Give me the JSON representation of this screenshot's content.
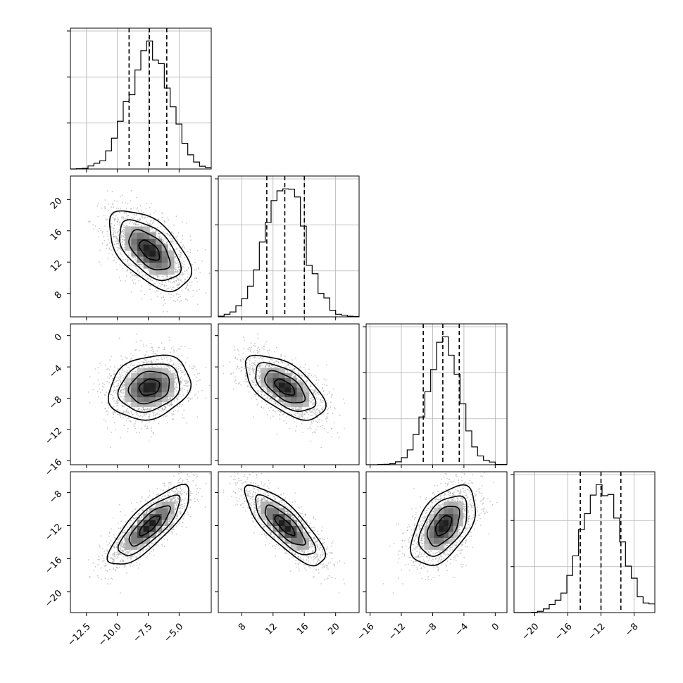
{
  "chart_data": {
    "type": "corner",
    "title": "",
    "parameters": [
      {
        "mean": -7.4,
        "sd": 1.65,
        "range": [
          -13.8,
          -2.4
        ],
        "ticks": [
          -12.5,
          -10.0,
          -7.5,
          -5.0
        ],
        "tick_labels": [
          "−12.5",
          "−10.0",
          "−7.5",
          "−5.0"
        ],
        "quantiles": [
          -9.05,
          -7.4,
          -6.0
        ]
      },
      {
        "mean": 13.5,
        "sd": 2.55,
        "range": [
          5.0,
          23.0
        ],
        "ticks": [
          8,
          12,
          16,
          20
        ],
        "tick_labels": [
          "8",
          "12",
          "16",
          "20"
        ],
        "quantiles": [
          11.2,
          13.5,
          16.0
        ]
      },
      {
        "mean": -6.6,
        "sd": 2.05,
        "range": [
          -16.5,
          1.5
        ],
        "ticks": [
          -16,
          -12,
          -8,
          -4,
          0
        ],
        "tick_labels": [
          "−16",
          "−12",
          "−8",
          "−4",
          "0"
        ],
        "quantiles": [
          -9.2,
          -6.7,
          -4.6
        ]
      },
      {
        "mean": -12.0,
        "sd": 2.4,
        "range": [
          -22.5,
          -5.5
        ],
        "ticks": [
          -20,
          -16,
          -12,
          -8
        ],
        "tick_labels": [
          "−20",
          "−16",
          "−12",
          "−8"
        ],
        "quantiles": [
          -14.5,
          -12.0,
          -9.6
        ]
      }
    ],
    "correlations": [
      [
        1.0,
        -0.55,
        0.2,
        0.8
      ],
      [
        -0.55,
        1.0,
        -0.6,
        -0.8
      ],
      [
        0.2,
        -0.6,
        1.0,
        0.5
      ],
      [
        0.8,
        -0.8,
        0.5,
        1.0
      ]
    ],
    "histogram_bins": 24,
    "grid": true,
    "contour_levels": [
      "0.5σ",
      "1σ",
      "1.5σ",
      "2σ"
    ],
    "colors": {
      "frame": "#000000",
      "scatter": "#9a9a9a",
      "grid": "#b0b0b0"
    }
  }
}
